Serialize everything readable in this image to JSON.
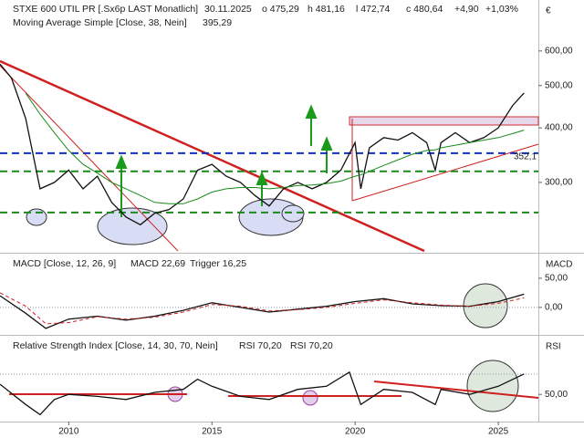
{
  "chart_data": [
    {
      "type": "line",
      "currency": "€",
      "header": [
        {
          "text": "STXE 600 UTIL PR [.Sx6p LAST Monatlich]",
          "color": "#222222"
        },
        {
          "text": "30.11.2025",
          "color": "#222222"
        },
        {
          "text": "o 475,29",
          "color": "#d02020"
        },
        {
          "text": "h 481,16",
          "color": "#222222"
        },
        {
          "text": "l 472,74",
          "color": "#222222"
        },
        {
          "text": "c 480,64",
          "color": "#1a9a1a"
        },
        {
          "text": "+4,90",
          "color": "#1a9a1a"
        },
        {
          "text": "+1,03%",
          "color": "#1a9a1a"
        }
      ],
      "subheader": [
        {
          "text": "Moving Average Simple [Close, 38, Nein]",
          "color": "#222222"
        },
        {
          "text": "395,29",
          "color": "#1a9a1a"
        }
      ],
      "x": [
        2007.6,
        2008.0,
        2008.5,
        2009.0,
        2009.5,
        2010.0,
        2010.5,
        2011.0,
        2011.5,
        2012.0,
        2012.5,
        2013.0,
        2013.5,
        2014.0,
        2014.5,
        2015.0,
        2015.5,
        2016.0,
        2016.5,
        2017.0,
        2017.5,
        2018.0,
        2018.5,
        2019.0,
        2019.5,
        2020.0,
        2020.2,
        2020.5,
        2021.0,
        2021.5,
        2022.0,
        2022.5,
        2022.8,
        2023.0,
        2023.5,
        2024.0,
        2024.5,
        2025.0,
        2025.5,
        2025.9
      ],
      "series": [
        {
          "color": "#111111",
          "values": [
            560,
            520,
            420,
            290,
            300,
            320,
            290,
            310,
            270,
            250,
            240,
            255,
            260,
            275,
            320,
            330,
            310,
            300,
            280,
            265,
            290,
            300,
            290,
            300,
            320,
            370,
            290,
            360,
            380,
            375,
            390,
            370,
            320,
            370,
            390,
            370,
            380,
            400,
            450,
            480.64
          ]
        },
        {
          "color": "#1a8a1a",
          "values": [
            null,
            null,
            480,
            430,
            390,
            355,
            330,
            315,
            300,
            290,
            280,
            270,
            268,
            268,
            275,
            285,
            290,
            292,
            292,
            290,
            292,
            295,
            296,
            298,
            302,
            310,
            312,
            318,
            328,
            338,
            348,
            355,
            356,
            360,
            365,
            370,
            375,
            380,
            388,
            395.29
          ]
        }
      ],
      "ylim": [
        209,
        785
      ],
      "log": true,
      "yticks": [
        {
          "value": 300,
          "label": "300,00"
        },
        {
          "value": 400,
          "label": "400,00"
        },
        {
          "value": 500,
          "label": "500,00"
        },
        {
          "value": 600,
          "label": "600,00"
        }
      ],
      "xlim": [
        2007.6,
        2026.4
      ],
      "levels": [
        {
          "value": 350,
          "color": "#1030c0"
        },
        {
          "value": 318,
          "color": "#1a8a1a"
        },
        {
          "value": 256,
          "color": "#1a8a1a"
        }
      ],
      "annotations": [
        {
          "value": 352.1,
          "label": "352,1",
          "color": "#d02020"
        }
      ]
    },
    {
      "type": "line",
      "axis_label": "MACD",
      "header": [
        {
          "text": "MACD [Close, 12, 26, 9]",
          "color": "#222222"
        },
        {
          "text": "MACD 22,69",
          "color": "#222222"
        },
        {
          "text": "Trigger 16,25",
          "color": "#d02020"
        }
      ],
      "x": [
        2007.6,
        2008.5,
        2009.2,
        2010.0,
        2011.0,
        2012.0,
        2013.0,
        2014.0,
        2015.0,
        2016.0,
        2017.0,
        2018.0,
        2019.0,
        2020.0,
        2021.0,
        2022.0,
        2023.0,
        2024.0,
        2025.0,
        2025.9
      ],
      "series": [
        {
          "color": "#111111",
          "values": [
            20,
            -10,
            -36,
            -20,
            -15,
            -22,
            -15,
            -5,
            8,
            0,
            -8,
            -3,
            2,
            10,
            15,
            6,
            3,
            2,
            10,
            22.69
          ]
        },
        {
          "color": "#d02020",
          "dashed": true,
          "values": [
            25,
            2,
            -28,
            -26,
            -16,
            -20,
            -17,
            -8,
            5,
            2,
            -6,
            -4,
            0,
            7,
            13,
            8,
            4,
            2,
            7,
            16.25
          ]
        }
      ],
      "ylim": [
        -44,
        89
      ],
      "yticks": [
        {
          "value": 0,
          "label": "0,00"
        },
        {
          "value": 50,
          "label": "50,00"
        }
      ],
      "xlim": [
        2007.6,
        2026.4
      ]
    },
    {
      "type": "line",
      "axis_label": "RSI",
      "header": [
        {
          "text": "Relative Strength Index [Close, 14, 30, 70, Nein]",
          "color": "#222222"
        },
        {
          "text": "RSI 70,20",
          "color": "#222222"
        },
        {
          "text": "RSI 70,20",
          "color": "#1a9a1a"
        }
      ],
      "x": [
        2007.6,
        2008.5,
        2009.0,
        2009.5,
        2010.0,
        2011.0,
        2012.0,
        2013.0,
        2014.0,
        2014.5,
        2015.0,
        2016.0,
        2017.0,
        2018.0,
        2019.0,
        2019.8,
        2020.2,
        2021.0,
        2022.0,
        2022.8,
        2023.0,
        2024.0,
        2025.0,
        2025.9
      ],
      "series": [
        {
          "color": "#111111",
          "values": [
            60,
            40,
            30,
            45,
            50,
            48,
            45,
            52,
            55,
            65,
            58,
            48,
            45,
            55,
            58,
            72,
            40,
            55,
            52,
            40,
            55,
            50,
            58,
            70.2
          ]
        }
      ],
      "ylim": [
        25,
        106
      ],
      "yticks": [
        {
          "value": 50,
          "label": "50,00"
        }
      ],
      "levels": [
        {
          "value": 70,
          "color": "#8899aa"
        }
      ],
      "xlim": [
        2007.6,
        2026.4
      ],
      "xticks": [
        2010,
        2015,
        2020,
        2025
      ]
    }
  ]
}
